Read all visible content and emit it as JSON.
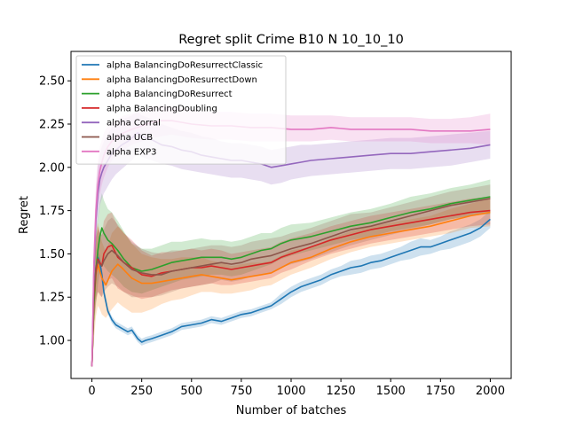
{
  "chart_data": {
    "type": "line",
    "title": "Regret split Crime B10 N 10_10_10",
    "xlabel": "Number of batches",
    "ylabel": "Regret",
    "xlim": [
      -105,
      2105
    ],
    "ylim": [
      0.78,
      2.67
    ],
    "xticks": [
      0,
      250,
      500,
      750,
      1000,
      1250,
      1500,
      1750,
      2000
    ],
    "yticks": [
      1.0,
      1.25,
      1.5,
      1.75,
      2.0,
      2.25,
      2.5
    ],
    "ytick_labels": [
      "1.00",
      "1.25",
      "1.50",
      "1.75",
      "2.00",
      "2.25",
      "2.50"
    ],
    "grid": false,
    "legend_position": "upper-left",
    "series": [
      {
        "name": "alpha BalancingDoResurrectClassic",
        "color": "#1f77b4",
        "x": [
          0,
          10,
          20,
          30,
          40,
          50,
          60,
          80,
          100,
          120,
          150,
          180,
          200,
          230,
          250,
          270,
          300,
          350,
          400,
          450,
          500,
          550,
          600,
          650,
          700,
          750,
          800,
          850,
          900,
          950,
          1000,
          1050,
          1100,
          1150,
          1200,
          1250,
          1300,
          1350,
          1400,
          1450,
          1500,
          1550,
          1600,
          1650,
          1700,
          1750,
          1800,
          1850,
          1900,
          1950,
          2000
        ],
        "y": [
          0.85,
          1.25,
          1.42,
          1.48,
          1.45,
          1.38,
          1.28,
          1.17,
          1.12,
          1.09,
          1.07,
          1.05,
          1.06,
          1.01,
          0.99,
          1.0,
          1.01,
          1.03,
          1.05,
          1.08,
          1.09,
          1.1,
          1.12,
          1.11,
          1.13,
          1.15,
          1.16,
          1.18,
          1.2,
          1.24,
          1.28,
          1.31,
          1.33,
          1.35,
          1.38,
          1.4,
          1.42,
          1.43,
          1.45,
          1.46,
          1.48,
          1.5,
          1.52,
          1.54,
          1.54,
          1.56,
          1.58,
          1.6,
          1.62,
          1.65,
          1.7
        ],
        "lower": [
          0.84,
          1.2,
          1.38,
          1.44,
          1.41,
          1.34,
          1.25,
          1.15,
          1.1,
          1.07,
          1.05,
          1.03,
          1.04,
          0.99,
          0.97,
          0.98,
          0.99,
          1.01,
          1.03,
          1.06,
          1.07,
          1.08,
          1.1,
          1.09,
          1.11,
          1.13,
          1.14,
          1.16,
          1.18,
          1.21,
          1.25,
          1.28,
          1.3,
          1.32,
          1.35,
          1.37,
          1.38,
          1.39,
          1.41,
          1.42,
          1.44,
          1.46,
          1.47,
          1.49,
          1.5,
          1.52,
          1.53,
          1.55,
          1.57,
          1.6,
          1.65
        ],
        "upper": [
          0.86,
          1.3,
          1.46,
          1.52,
          1.49,
          1.42,
          1.31,
          1.19,
          1.14,
          1.11,
          1.09,
          1.07,
          1.08,
          1.03,
          1.01,
          1.02,
          1.03,
          1.05,
          1.07,
          1.1,
          1.11,
          1.12,
          1.14,
          1.13,
          1.15,
          1.17,
          1.18,
          1.2,
          1.22,
          1.27,
          1.31,
          1.34,
          1.36,
          1.38,
          1.41,
          1.43,
          1.46,
          1.47,
          1.49,
          1.5,
          1.52,
          1.54,
          1.57,
          1.59,
          1.58,
          1.6,
          1.63,
          1.65,
          1.67,
          1.7,
          1.75
        ]
      },
      {
        "name": "alpha BalancingDoResurrectDown",
        "color": "#ff7f0e",
        "x": [
          0,
          10,
          20,
          30,
          40,
          50,
          70,
          100,
          130,
          150,
          200,
          250,
          300,
          350,
          400,
          450,
          500,
          550,
          600,
          650,
          700,
          750,
          800,
          850,
          900,
          950,
          1000,
          1100,
          1200,
          1300,
          1400,
          1500,
          1600,
          1700,
          1800,
          1900,
          2000
        ],
        "y": [
          0.85,
          1.2,
          1.38,
          1.44,
          1.4,
          1.36,
          1.32,
          1.4,
          1.44,
          1.42,
          1.36,
          1.33,
          1.33,
          1.34,
          1.35,
          1.36,
          1.37,
          1.38,
          1.37,
          1.36,
          1.35,
          1.36,
          1.37,
          1.38,
          1.39,
          1.42,
          1.45,
          1.48,
          1.53,
          1.57,
          1.6,
          1.62,
          1.64,
          1.66,
          1.69,
          1.72,
          1.74
        ],
        "lower": [
          0.84,
          1.0,
          1.14,
          1.2,
          1.18,
          1.15,
          1.13,
          1.18,
          1.22,
          1.2,
          1.16,
          1.16,
          1.18,
          1.21,
          1.23,
          1.24,
          1.26,
          1.28,
          1.28,
          1.27,
          1.27,
          1.28,
          1.29,
          1.31,
          1.32,
          1.35,
          1.38,
          1.42,
          1.47,
          1.51,
          1.54,
          1.56,
          1.58,
          1.6,
          1.62,
          1.65,
          1.66
        ],
        "upper": [
          0.86,
          1.4,
          1.62,
          1.68,
          1.62,
          1.57,
          1.51,
          1.62,
          1.66,
          1.64,
          1.56,
          1.5,
          1.48,
          1.47,
          1.47,
          1.48,
          1.48,
          1.48,
          1.46,
          1.45,
          1.43,
          1.44,
          1.45,
          1.45,
          1.46,
          1.49,
          1.52,
          1.54,
          1.59,
          1.63,
          1.66,
          1.68,
          1.7,
          1.72,
          1.76,
          1.79,
          1.82
        ]
      },
      {
        "name": "alpha BalancingDoResurrect",
        "color": "#2ca02c",
        "x": [
          0,
          10,
          20,
          30,
          40,
          50,
          60,
          80,
          100,
          130,
          160,
          200,
          250,
          300,
          350,
          400,
          450,
          500,
          550,
          600,
          650,
          700,
          750,
          800,
          850,
          900,
          950,
          1000,
          1100,
          1200,
          1300,
          1400,
          1500,
          1600,
          1700,
          1800,
          1900,
          2000
        ],
        "y": [
          0.85,
          1.2,
          1.4,
          1.52,
          1.6,
          1.65,
          1.62,
          1.58,
          1.56,
          1.52,
          1.47,
          1.42,
          1.4,
          1.41,
          1.43,
          1.45,
          1.46,
          1.47,
          1.48,
          1.48,
          1.48,
          1.47,
          1.48,
          1.5,
          1.52,
          1.53,
          1.56,
          1.58,
          1.6,
          1.63,
          1.66,
          1.68,
          1.71,
          1.74,
          1.76,
          1.79,
          1.81,
          1.83
        ],
        "lower": [
          0.84,
          1.05,
          1.2,
          1.32,
          1.4,
          1.45,
          1.43,
          1.4,
          1.38,
          1.35,
          1.31,
          1.28,
          1.27,
          1.29,
          1.31,
          1.33,
          1.35,
          1.36,
          1.37,
          1.38,
          1.38,
          1.37,
          1.38,
          1.4,
          1.42,
          1.44,
          1.47,
          1.49,
          1.52,
          1.55,
          1.58,
          1.6,
          1.63,
          1.65,
          1.67,
          1.7,
          1.72,
          1.73
        ],
        "upper": [
          0.86,
          1.35,
          1.6,
          1.72,
          1.8,
          1.85,
          1.81,
          1.76,
          1.74,
          1.69,
          1.63,
          1.56,
          1.53,
          1.53,
          1.55,
          1.57,
          1.57,
          1.58,
          1.59,
          1.58,
          1.58,
          1.57,
          1.58,
          1.6,
          1.62,
          1.62,
          1.65,
          1.67,
          1.68,
          1.71,
          1.74,
          1.76,
          1.79,
          1.83,
          1.85,
          1.88,
          1.9,
          1.93
        ]
      },
      {
        "name": "alpha BalancingDoubling",
        "color": "#d62728",
        "x": [
          0,
          10,
          20,
          30,
          40,
          50,
          60,
          80,
          100,
          130,
          160,
          200,
          250,
          300,
          350,
          400,
          450,
          500,
          550,
          600,
          650,
          700,
          750,
          800,
          850,
          900,
          950,
          1000,
          1100,
          1200,
          1300,
          1400,
          1500,
          1600,
          1700,
          1800,
          1900,
          2000
        ],
        "y": [
          0.85,
          1.25,
          1.4,
          1.47,
          1.45,
          1.43,
          1.5,
          1.54,
          1.55,
          1.48,
          1.45,
          1.42,
          1.38,
          1.37,
          1.39,
          1.4,
          1.41,
          1.42,
          1.42,
          1.43,
          1.42,
          1.41,
          1.42,
          1.43,
          1.44,
          1.45,
          1.48,
          1.5,
          1.54,
          1.58,
          1.61,
          1.64,
          1.66,
          1.68,
          1.7,
          1.72,
          1.74,
          1.75
        ],
        "lower": [
          0.84,
          1.1,
          1.22,
          1.28,
          1.27,
          1.25,
          1.31,
          1.35,
          1.36,
          1.3,
          1.28,
          1.26,
          1.24,
          1.25,
          1.27,
          1.29,
          1.3,
          1.31,
          1.32,
          1.33,
          1.32,
          1.32,
          1.33,
          1.34,
          1.35,
          1.36,
          1.39,
          1.41,
          1.46,
          1.5,
          1.53,
          1.56,
          1.58,
          1.6,
          1.62,
          1.64,
          1.66,
          1.67
        ],
        "upper": [
          0.86,
          1.4,
          1.58,
          1.66,
          1.63,
          1.61,
          1.69,
          1.73,
          1.74,
          1.66,
          1.62,
          1.58,
          1.52,
          1.49,
          1.51,
          1.51,
          1.52,
          1.53,
          1.52,
          1.53,
          1.52,
          1.5,
          1.51,
          1.52,
          1.53,
          1.54,
          1.57,
          1.59,
          1.62,
          1.66,
          1.69,
          1.72,
          1.74,
          1.76,
          1.78,
          1.8,
          1.82,
          1.83
        ]
      },
      {
        "name": "alpha Corral",
        "color": "#9467bd",
        "x": [
          0,
          10,
          20,
          30,
          40,
          50,
          60,
          70,
          80,
          100,
          120,
          150,
          180,
          200,
          230,
          250,
          300,
          350,
          400,
          450,
          500,
          550,
          600,
          650,
          700,
          750,
          800,
          850,
          900,
          950,
          1000,
          1050,
          1100,
          1200,
          1300,
          1400,
          1500,
          1600,
          1700,
          1800,
          1900,
          2000
        ],
        "y": [
          0.85,
          1.4,
          1.7,
          1.85,
          1.93,
          1.97,
          2.0,
          2.02,
          2.04,
          2.08,
          2.1,
          2.13,
          2.15,
          2.17,
          2.2,
          2.18,
          2.16,
          2.13,
          2.12,
          2.1,
          2.09,
          2.07,
          2.06,
          2.05,
          2.04,
          2.04,
          2.03,
          2.02,
          2.0,
          2.01,
          2.02,
          2.03,
          2.04,
          2.05,
          2.06,
          2.07,
          2.08,
          2.08,
          2.09,
          2.1,
          2.11,
          2.13
        ],
        "lower": [
          0.84,
          1.25,
          1.55,
          1.7,
          1.78,
          1.82,
          1.85,
          1.87,
          1.89,
          1.93,
          1.96,
          1.99,
          2.02,
          2.04,
          2.08,
          2.06,
          2.04,
          2.02,
          2.01,
          1.99,
          1.98,
          1.97,
          1.96,
          1.95,
          1.94,
          1.94,
          1.93,
          1.92,
          1.9,
          1.91,
          1.93,
          1.94,
          1.95,
          1.96,
          1.97,
          1.98,
          1.99,
          1.99,
          2.0,
          2.01,
          2.03,
          2.05
        ],
        "upper": [
          0.86,
          1.55,
          1.85,
          2.0,
          2.08,
          2.12,
          2.15,
          2.17,
          2.19,
          2.23,
          2.25,
          2.28,
          2.29,
          2.3,
          2.32,
          2.3,
          2.28,
          2.25,
          2.23,
          2.21,
          2.2,
          2.18,
          2.17,
          2.15,
          2.14,
          2.14,
          2.13,
          2.12,
          2.1,
          2.11,
          2.12,
          2.13,
          2.13,
          2.14,
          2.15,
          2.16,
          2.17,
          2.17,
          2.18,
          2.19,
          2.2,
          2.21
        ]
      },
      {
        "name": "alpha UCB",
        "color": "#8c564b",
        "x": [
          0,
          10,
          20,
          30,
          40,
          50,
          60,
          80,
          100,
          130,
          160,
          200,
          250,
          300,
          350,
          400,
          450,
          500,
          550,
          600,
          650,
          700,
          750,
          800,
          850,
          900,
          950,
          1000,
          1100,
          1200,
          1300,
          1400,
          1500,
          1600,
          1700,
          1800,
          1900,
          2000
        ],
        "y": [
          0.85,
          1.25,
          1.42,
          1.46,
          1.44,
          1.43,
          1.46,
          1.5,
          1.52,
          1.49,
          1.45,
          1.41,
          1.39,
          1.38,
          1.38,
          1.4,
          1.41,
          1.42,
          1.43,
          1.44,
          1.45,
          1.44,
          1.45,
          1.47,
          1.48,
          1.49,
          1.51,
          1.53,
          1.56,
          1.6,
          1.64,
          1.66,
          1.69,
          1.72,
          1.75,
          1.78,
          1.8,
          1.82
        ],
        "lower": [
          0.84,
          1.1,
          1.25,
          1.28,
          1.26,
          1.25,
          1.28,
          1.31,
          1.33,
          1.31,
          1.28,
          1.25,
          1.25,
          1.25,
          1.26,
          1.28,
          1.3,
          1.31,
          1.32,
          1.33,
          1.35,
          1.34,
          1.35,
          1.37,
          1.38,
          1.39,
          1.42,
          1.44,
          1.47,
          1.51,
          1.55,
          1.58,
          1.61,
          1.64,
          1.67,
          1.7,
          1.72,
          1.74
        ],
        "upper": [
          0.86,
          1.4,
          1.6,
          1.64,
          1.62,
          1.61,
          1.64,
          1.69,
          1.71,
          1.67,
          1.62,
          1.57,
          1.53,
          1.51,
          1.5,
          1.52,
          1.52,
          1.53,
          1.54,
          1.55,
          1.55,
          1.54,
          1.55,
          1.57,
          1.58,
          1.59,
          1.6,
          1.62,
          1.65,
          1.69,
          1.73,
          1.74,
          1.77,
          1.8,
          1.83,
          1.86,
          1.88,
          1.9
        ]
      },
      {
        "name": "alpha EXP3",
        "color": "#e377c2",
        "x": [
          0,
          10,
          20,
          30,
          40,
          50,
          60,
          80,
          100,
          130,
          160,
          200,
          250,
          300,
          350,
          400,
          450,
          500,
          600,
          700,
          800,
          900,
          1000,
          1100,
          1200,
          1300,
          1400,
          1500,
          1600,
          1700,
          1800,
          1900,
          2000
        ],
        "y": [
          0.85,
          1.45,
          1.75,
          1.9,
          1.98,
          2.03,
          2.07,
          2.12,
          2.15,
          2.18,
          2.2,
          2.22,
          2.24,
          2.26,
          2.27,
          2.27,
          2.26,
          2.25,
          2.24,
          2.24,
          2.23,
          2.23,
          2.22,
          2.22,
          2.23,
          2.22,
          2.22,
          2.22,
          2.22,
          2.21,
          2.21,
          2.21,
          2.22
        ],
        "lower": [
          0.84,
          1.3,
          1.6,
          1.75,
          1.84,
          1.9,
          1.94,
          2.0,
          2.04,
          2.08,
          2.1,
          2.13,
          2.15,
          2.17,
          2.18,
          2.19,
          2.18,
          2.17,
          2.16,
          2.16,
          2.15,
          2.15,
          2.15,
          2.15,
          2.16,
          2.15,
          2.15,
          2.15,
          2.15,
          2.14,
          2.14,
          2.14,
          2.13
        ],
        "upper": [
          0.86,
          1.6,
          1.9,
          2.05,
          2.12,
          2.16,
          2.2,
          2.24,
          2.26,
          2.28,
          2.3,
          2.31,
          2.33,
          2.35,
          2.36,
          2.35,
          2.34,
          2.33,
          2.32,
          2.32,
          2.31,
          2.31,
          2.3,
          2.3,
          2.3,
          2.29,
          2.29,
          2.29,
          2.29,
          2.28,
          2.28,
          2.29,
          2.31
        ]
      }
    ]
  }
}
